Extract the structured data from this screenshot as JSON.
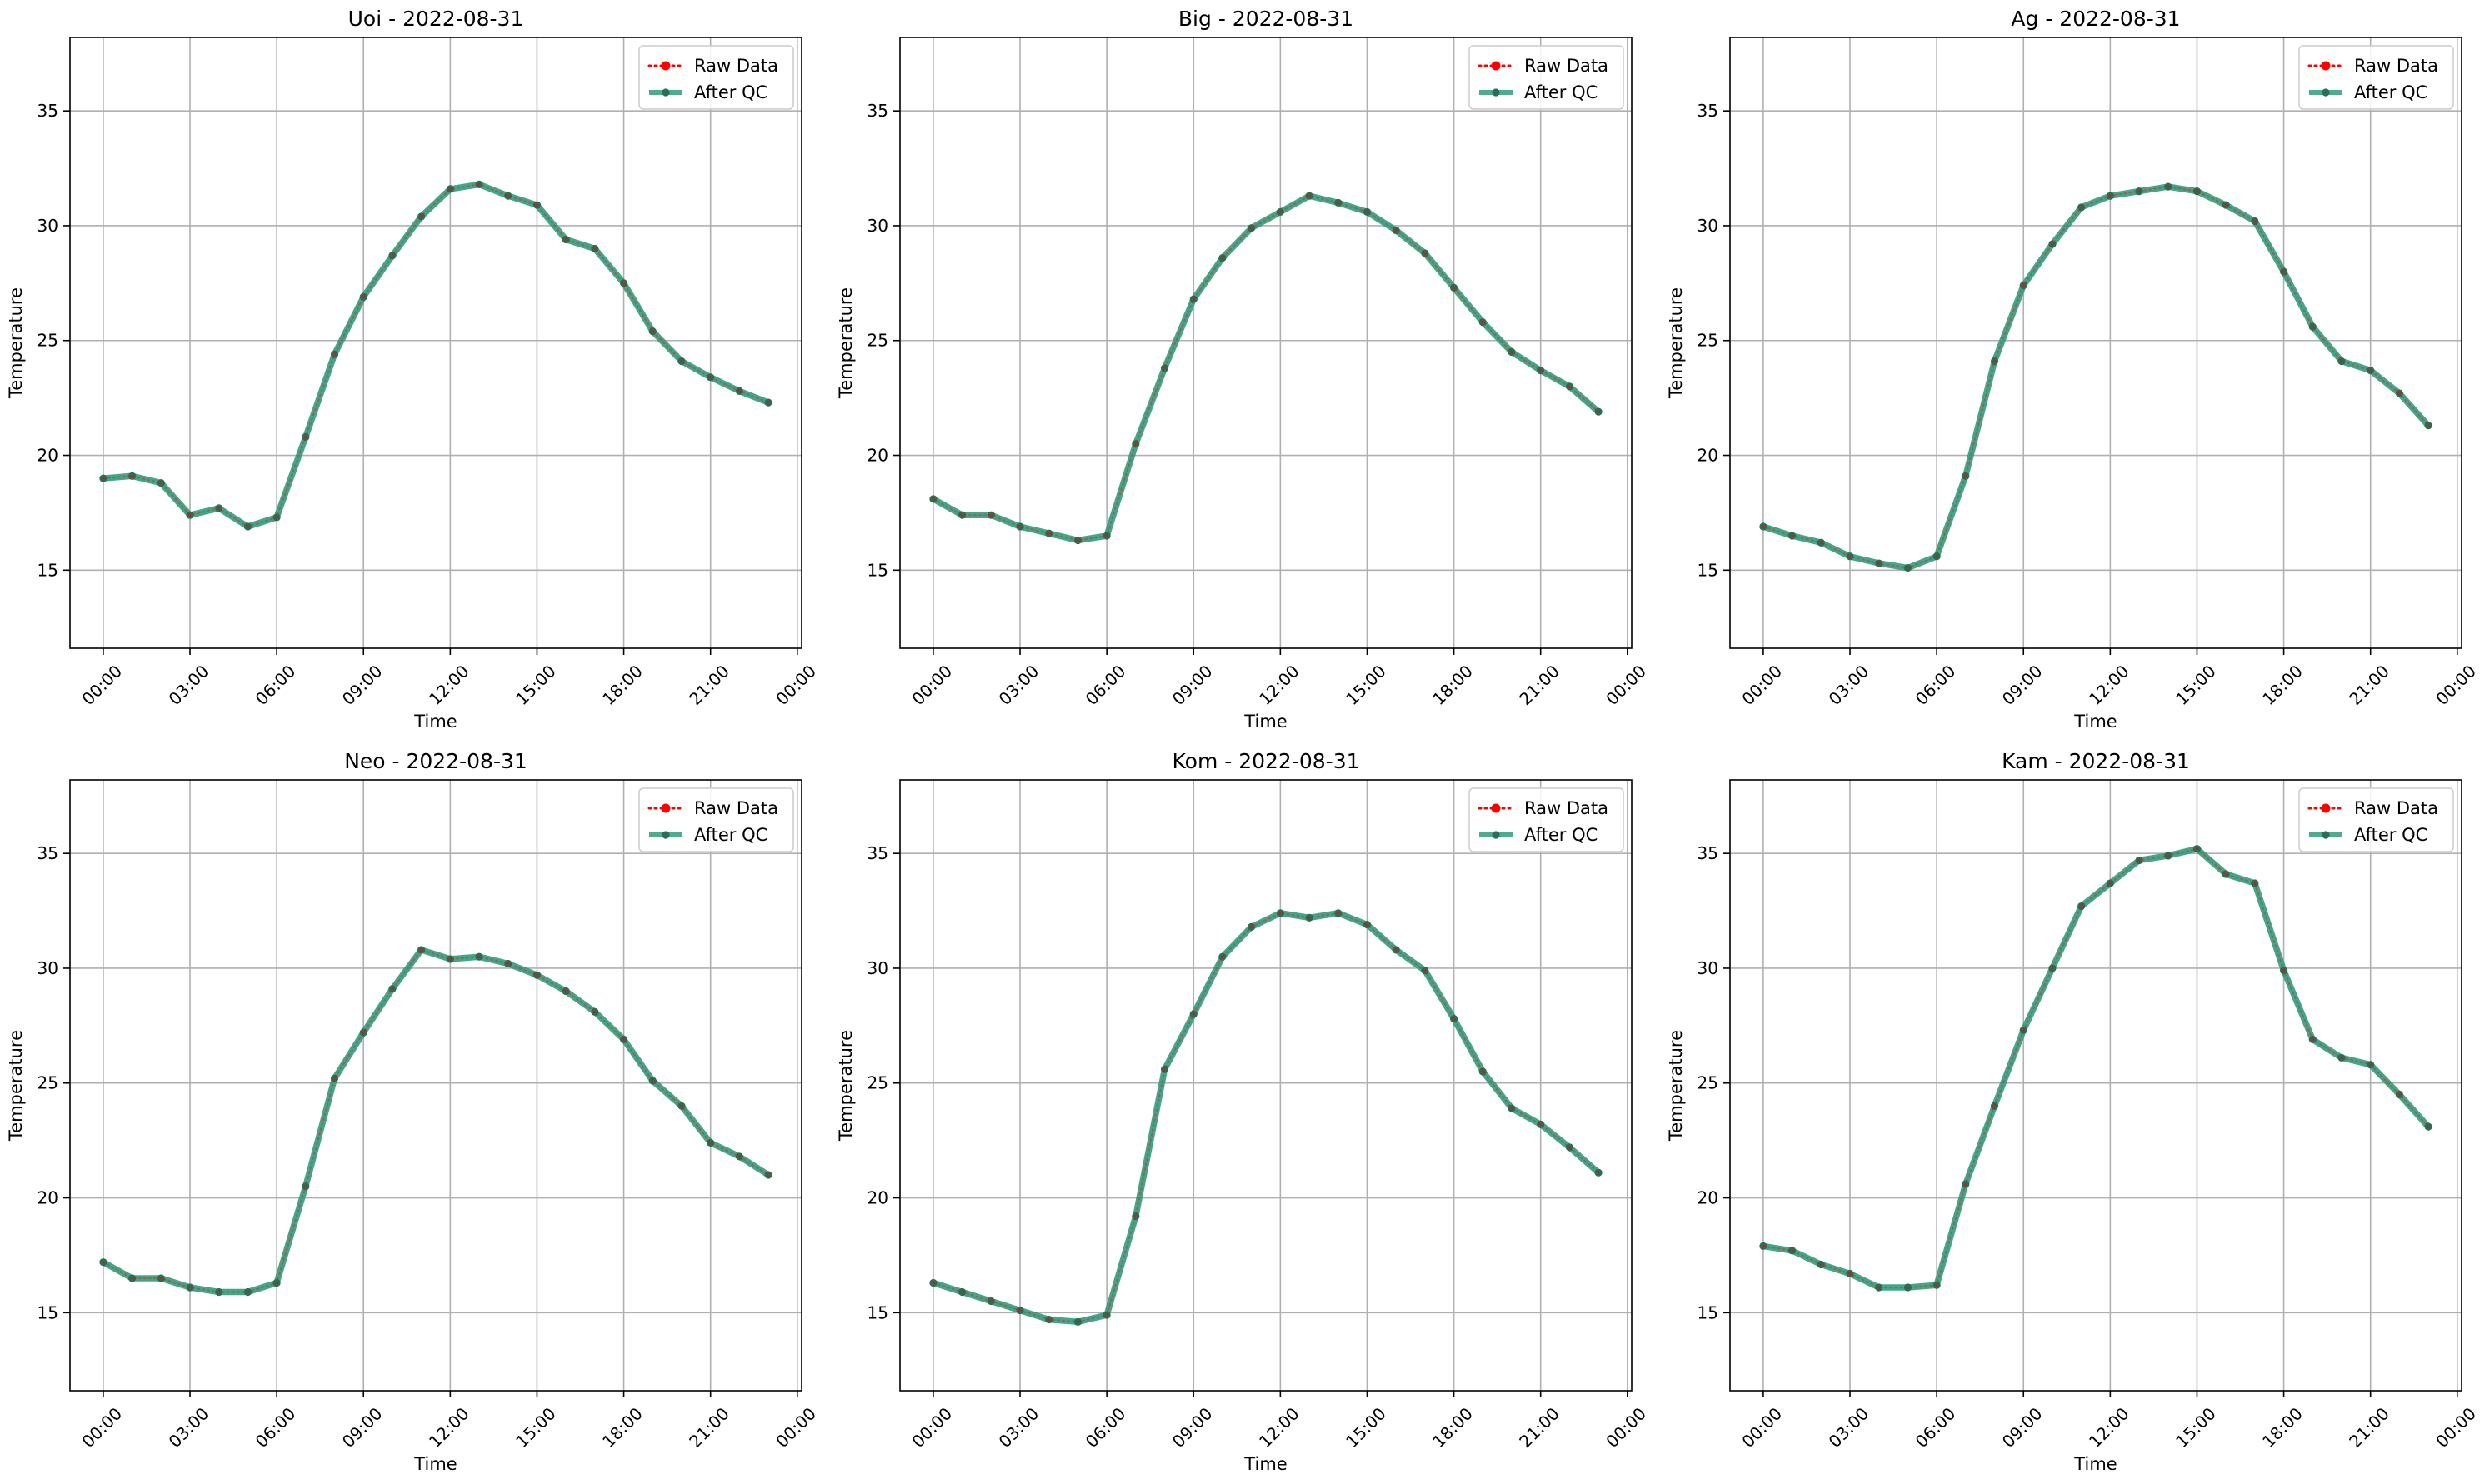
{
  "colors": {
    "raw": "#ff0000",
    "qc": "#2e9d7c",
    "qc_marker": "#2a6e55",
    "grid": "#b0b0b0",
    "axis": "#000000",
    "background": "#ffffff"
  },
  "chart_data": [
    {
      "type": "line",
      "title": "Uoi - 2022-08-31",
      "xlabel": "Time",
      "ylabel": "Temperature",
      "x_hours": [
        0,
        1,
        2,
        3,
        4,
        5,
        6,
        7,
        8,
        9,
        10,
        11,
        12,
        13,
        14,
        15,
        16,
        17,
        18,
        19,
        20,
        21,
        22,
        23
      ],
      "xlim": [
        -1.15,
        24.15
      ],
      "ylim": [
        11.6,
        38.2
      ],
      "xticks": [
        0,
        3,
        6,
        9,
        12,
        15,
        18,
        21,
        24
      ],
      "xtick_labels": [
        "00:00",
        "03:00",
        "06:00",
        "09:00",
        "12:00",
        "15:00",
        "18:00",
        "21:00",
        "00:00"
      ],
      "yticks": [
        15,
        20,
        25,
        30,
        35
      ],
      "ytick_labels": [
        "15",
        "20",
        "25",
        "30",
        "35"
      ],
      "grid": true,
      "legend": "upper right",
      "series": [
        {
          "name": "Raw Data",
          "style": "dotted",
          "values": [
            19.0,
            19.1,
            18.8,
            17.4,
            17.7,
            16.9,
            17.3,
            20.8,
            24.4,
            26.9,
            28.7,
            30.4,
            31.6,
            31.8,
            31.3,
            30.9,
            29.4,
            29.0,
            27.5,
            25.4,
            24.1,
            23.4,
            22.8,
            22.3
          ]
        },
        {
          "name": "After QC",
          "style": "solid",
          "values": [
            19.0,
            19.1,
            18.8,
            17.4,
            17.7,
            16.9,
            17.3,
            20.8,
            24.4,
            26.9,
            28.7,
            30.4,
            31.6,
            31.8,
            31.3,
            30.9,
            29.4,
            29.0,
            27.5,
            25.4,
            24.1,
            23.4,
            22.8,
            22.3
          ]
        }
      ]
    },
    {
      "type": "line",
      "title": "Big - 2022-08-31",
      "xlabel": "Time",
      "ylabel": "Temperature",
      "x_hours": [
        0,
        1,
        2,
        3,
        4,
        5,
        6,
        7,
        8,
        9,
        10,
        11,
        12,
        13,
        14,
        15,
        16,
        17,
        18,
        19,
        20,
        21,
        22,
        23
      ],
      "xlim": [
        -1.15,
        24.15
      ],
      "ylim": [
        11.6,
        38.2
      ],
      "xticks": [
        0,
        3,
        6,
        9,
        12,
        15,
        18,
        21,
        24
      ],
      "xtick_labels": [
        "00:00",
        "03:00",
        "06:00",
        "09:00",
        "12:00",
        "15:00",
        "18:00",
        "21:00",
        "00:00"
      ],
      "yticks": [
        15,
        20,
        25,
        30,
        35
      ],
      "ytick_labels": [
        "15",
        "20",
        "25",
        "30",
        "35"
      ],
      "grid": true,
      "legend": "upper right",
      "series": [
        {
          "name": "Raw Data",
          "style": "dotted",
          "values": [
            18.1,
            17.4,
            17.4,
            16.9,
            16.6,
            16.3,
            16.5,
            20.5,
            23.8,
            26.8,
            28.6,
            29.9,
            30.6,
            31.3,
            31.0,
            30.6,
            29.8,
            28.8,
            27.3,
            25.8,
            24.5,
            23.7,
            23.0,
            21.9
          ]
        },
        {
          "name": "After QC",
          "style": "solid",
          "values": [
            18.1,
            17.4,
            17.4,
            16.9,
            16.6,
            16.3,
            16.5,
            20.5,
            23.8,
            26.8,
            28.6,
            29.9,
            30.6,
            31.3,
            31.0,
            30.6,
            29.8,
            28.8,
            27.3,
            25.8,
            24.5,
            23.7,
            23.0,
            21.9
          ]
        }
      ]
    },
    {
      "type": "line",
      "title": "Ag - 2022-08-31",
      "xlabel": "Time",
      "ylabel": "Temperature",
      "x_hours": [
        0,
        1,
        2,
        3,
        4,
        5,
        6,
        7,
        8,
        9,
        10,
        11,
        12,
        13,
        14,
        15,
        16,
        17,
        18,
        19,
        20,
        21,
        22,
        23
      ],
      "xlim": [
        -1.15,
        24.15
      ],
      "ylim": [
        11.6,
        38.2
      ],
      "xticks": [
        0,
        3,
        6,
        9,
        12,
        15,
        18,
        21,
        24
      ],
      "xtick_labels": [
        "00:00",
        "03:00",
        "06:00",
        "09:00",
        "12:00",
        "15:00",
        "18:00",
        "21:00",
        "00:00"
      ],
      "yticks": [
        15,
        20,
        25,
        30,
        35
      ],
      "ytick_labels": [
        "15",
        "20",
        "25",
        "30",
        "35"
      ],
      "grid": true,
      "legend": "upper right",
      "series": [
        {
          "name": "Raw Data",
          "style": "dotted",
          "values": [
            16.9,
            16.5,
            16.2,
            15.6,
            15.3,
            15.1,
            15.6,
            19.1,
            24.1,
            27.4,
            29.2,
            30.8,
            31.3,
            31.5,
            31.7,
            31.5,
            30.9,
            30.2,
            28.0,
            25.6,
            24.1,
            23.7,
            22.7,
            21.3
          ]
        },
        {
          "name": "After QC",
          "style": "solid",
          "values": [
            16.9,
            16.5,
            16.2,
            15.6,
            15.3,
            15.1,
            15.6,
            19.1,
            24.1,
            27.4,
            29.2,
            30.8,
            31.3,
            31.5,
            31.7,
            31.5,
            30.9,
            30.2,
            28.0,
            25.6,
            24.1,
            23.7,
            22.7,
            21.3
          ]
        }
      ]
    },
    {
      "type": "line",
      "title": "Neo - 2022-08-31",
      "xlabel": "Time",
      "ylabel": "Temperature",
      "x_hours": [
        0,
        1,
        2,
        3,
        4,
        5,
        6,
        7,
        8,
        9,
        10,
        11,
        12,
        13,
        14,
        15,
        16,
        17,
        18,
        19,
        20,
        21,
        22,
        23
      ],
      "xlim": [
        -1.15,
        24.15
      ],
      "ylim": [
        11.6,
        38.2
      ],
      "xticks": [
        0,
        3,
        6,
        9,
        12,
        15,
        18,
        21,
        24
      ],
      "xtick_labels": [
        "00:00",
        "03:00",
        "06:00",
        "09:00",
        "12:00",
        "15:00",
        "18:00",
        "21:00",
        "00:00"
      ],
      "yticks": [
        15,
        20,
        25,
        30,
        35
      ],
      "ytick_labels": [
        "15",
        "20",
        "25",
        "30",
        "35"
      ],
      "grid": true,
      "legend": "upper right",
      "series": [
        {
          "name": "Raw Data",
          "style": "dotted",
          "values": [
            17.2,
            16.5,
            16.5,
            16.1,
            15.9,
            15.9,
            16.3,
            20.5,
            25.2,
            27.2,
            29.1,
            30.8,
            30.4,
            30.5,
            30.2,
            29.7,
            29.0,
            28.1,
            26.9,
            25.1,
            24.0,
            22.4,
            21.8,
            21.0
          ]
        },
        {
          "name": "After QC",
          "style": "solid",
          "values": [
            17.2,
            16.5,
            16.5,
            16.1,
            15.9,
            15.9,
            16.3,
            20.5,
            25.2,
            27.2,
            29.1,
            30.8,
            30.4,
            30.5,
            30.2,
            29.7,
            29.0,
            28.1,
            26.9,
            25.1,
            24.0,
            22.4,
            21.8,
            21.0
          ]
        }
      ]
    },
    {
      "type": "line",
      "title": "Kom - 2022-08-31",
      "xlabel": "Time",
      "ylabel": "Temperature",
      "x_hours": [
        0,
        1,
        2,
        3,
        4,
        5,
        6,
        7,
        8,
        9,
        10,
        11,
        12,
        13,
        14,
        15,
        16,
        17,
        18,
        19,
        20,
        21,
        22,
        23
      ],
      "xlim": [
        -1.15,
        24.15
      ],
      "ylim": [
        11.6,
        38.2
      ],
      "xticks": [
        0,
        3,
        6,
        9,
        12,
        15,
        18,
        21,
        24
      ],
      "xtick_labels": [
        "00:00",
        "03:00",
        "06:00",
        "09:00",
        "12:00",
        "15:00",
        "18:00",
        "21:00",
        "00:00"
      ],
      "yticks": [
        15,
        20,
        25,
        30,
        35
      ],
      "ytick_labels": [
        "15",
        "20",
        "25",
        "30",
        "35"
      ],
      "grid": true,
      "legend": "upper right",
      "series": [
        {
          "name": "Raw Data",
          "style": "dotted",
          "values": [
            16.3,
            15.9,
            15.5,
            15.1,
            14.7,
            14.6,
            14.9,
            19.2,
            25.6,
            28.0,
            30.5,
            31.8,
            32.4,
            32.2,
            32.4,
            31.9,
            30.8,
            29.9,
            27.8,
            25.5,
            23.9,
            23.2,
            22.2,
            21.1
          ]
        },
        {
          "name": "After QC",
          "style": "solid",
          "values": [
            16.3,
            15.9,
            15.5,
            15.1,
            14.7,
            14.6,
            14.9,
            19.2,
            25.6,
            28.0,
            30.5,
            31.8,
            32.4,
            32.2,
            32.4,
            31.9,
            30.8,
            29.9,
            27.8,
            25.5,
            23.9,
            23.2,
            22.2,
            21.1
          ]
        }
      ]
    },
    {
      "type": "line",
      "title": "Kam - 2022-08-31",
      "xlabel": "Time",
      "ylabel": "Temperature",
      "x_hours": [
        0,
        1,
        2,
        3,
        4,
        5,
        6,
        7,
        8,
        9,
        10,
        11,
        12,
        13,
        14,
        15,
        16,
        17,
        18,
        19,
        20,
        21,
        22,
        23
      ],
      "xlim": [
        -1.15,
        24.15
      ],
      "ylim": [
        11.6,
        38.2
      ],
      "xticks": [
        0,
        3,
        6,
        9,
        12,
        15,
        18,
        21,
        24
      ],
      "xtick_labels": [
        "00:00",
        "03:00",
        "06:00",
        "09:00",
        "12:00",
        "15:00",
        "18:00",
        "21:00",
        "00:00"
      ],
      "yticks": [
        15,
        20,
        25,
        30,
        35
      ],
      "ytick_labels": [
        "15",
        "20",
        "25",
        "30",
        "35"
      ],
      "grid": true,
      "legend": "upper right",
      "series": [
        {
          "name": "Raw Data",
          "style": "dotted",
          "values": [
            17.9,
            17.7,
            17.1,
            16.7,
            16.1,
            16.1,
            16.2,
            20.6,
            24.0,
            27.3,
            30.0,
            32.7,
            33.7,
            34.7,
            34.9,
            35.2,
            34.1,
            33.7,
            29.9,
            26.9,
            26.1,
            25.8,
            24.5,
            23.1
          ]
        },
        {
          "name": "After QC",
          "style": "solid",
          "values": [
            17.9,
            17.7,
            17.1,
            16.7,
            16.1,
            16.1,
            16.2,
            20.6,
            24.0,
            27.3,
            30.0,
            32.7,
            33.7,
            34.7,
            34.9,
            35.2,
            34.1,
            33.7,
            29.9,
            26.9,
            26.1,
            25.8,
            24.5,
            23.1
          ]
        }
      ]
    }
  ]
}
